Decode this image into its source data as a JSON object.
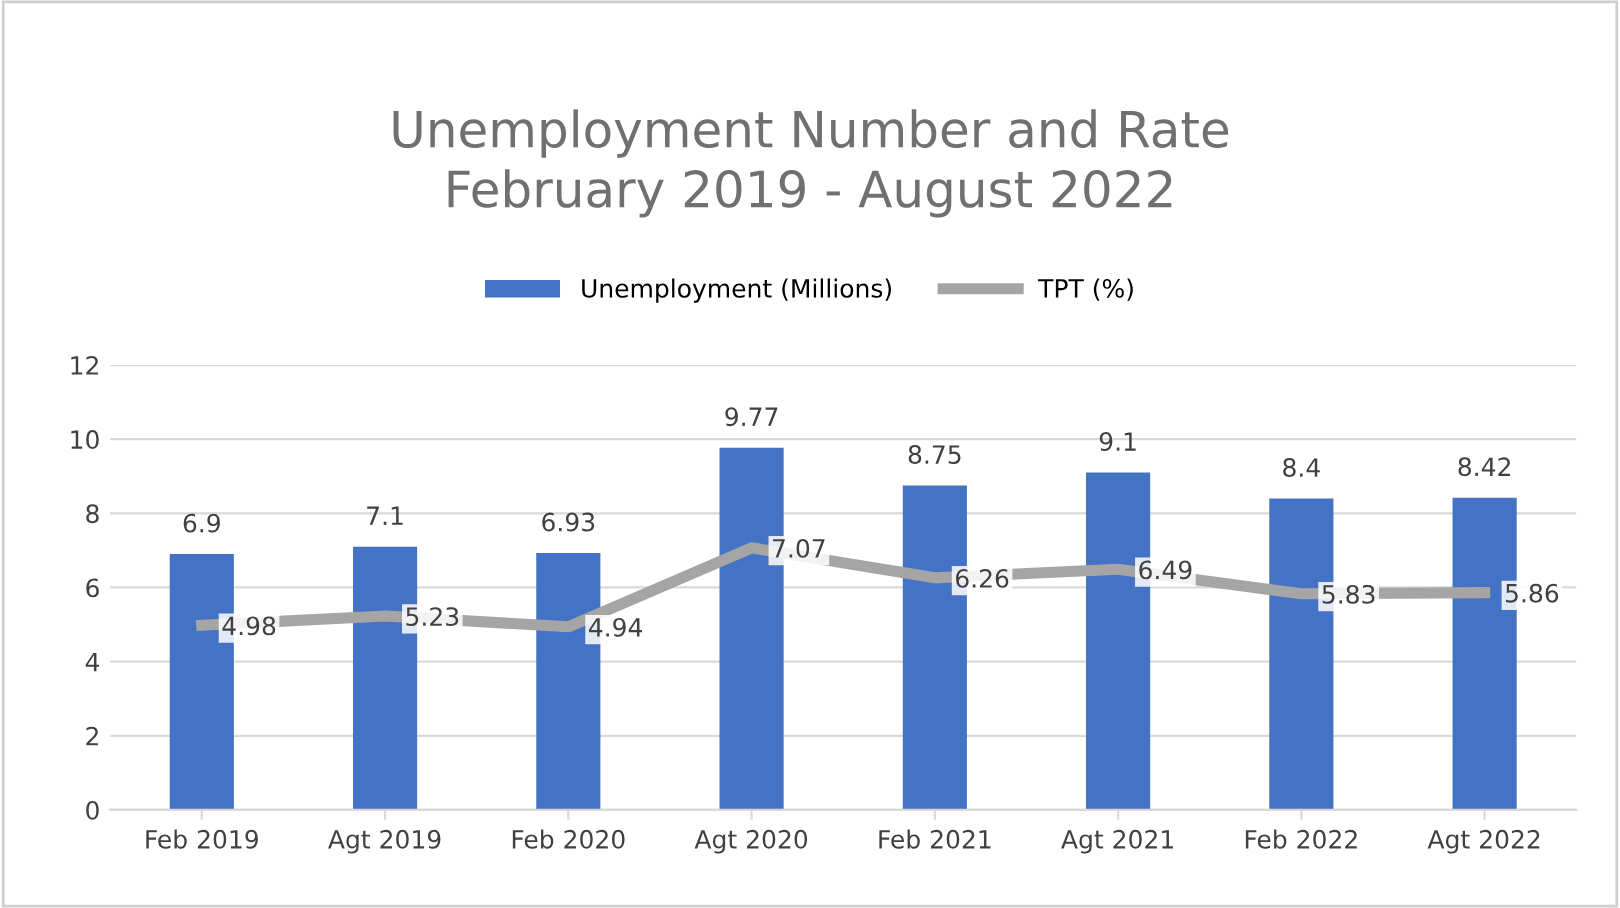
{
  "chart_data": {
    "type": "bar",
    "title": "Unemployment Number and Rate\nFebruary 2019 - August 2022",
    "categories": [
      "Feb 2019",
      "Agt 2019",
      "Feb 2020",
      "Agt 2020",
      "Feb 2021",
      "Agt 2021",
      "Feb 2022",
      "Agt 2022"
    ],
    "series": [
      {
        "name": "Unemployment (Millions)",
        "color": "#4472c4",
        "values": [
          6.9,
          7.1,
          6.93,
          9.77,
          8.75,
          9.1,
          8.4,
          8.42
        ]
      },
      {
        "name": "TPT (%)",
        "type": "line",
        "color": "#a5a5a5",
        "values": [
          4.98,
          5.23,
          4.94,
          7.07,
          6.26,
          6.49,
          5.83,
          5.86
        ]
      }
    ],
    "ylim": [
      0,
      12
    ],
    "yticks": [
      0,
      2,
      4,
      6,
      8,
      10,
      12
    ],
    "grid": "y",
    "legend": "top",
    "data_labels": true,
    "marker": "none",
    "line_style": "solid"
  }
}
